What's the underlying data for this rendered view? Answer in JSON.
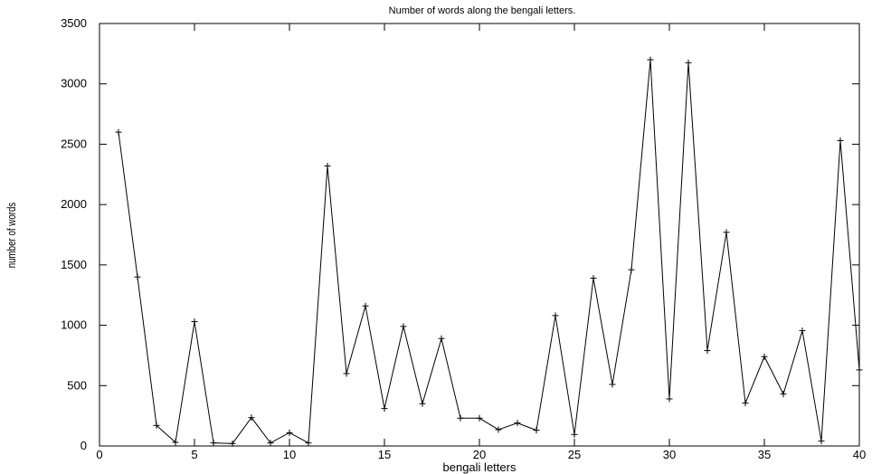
{
  "chart_data": {
    "type": "line",
    "title": "Number of words along the bengali letters.",
    "xlabel": "bengali letters",
    "ylabel": "number of words",
    "xlim": [
      0,
      40
    ],
    "ylim": [
      0,
      3500
    ],
    "x_ticks": [
      0,
      5,
      10,
      15,
      20,
      25,
      30,
      35,
      40
    ],
    "y_ticks": [
      0,
      500,
      1000,
      1500,
      2000,
      2500,
      3000,
      3500
    ],
    "grid": false,
    "legend": "none",
    "colors": {
      "line": "#000000",
      "axes": "#000000",
      "background": "#ffffff"
    },
    "series": [
      {
        "x": [
          1,
          2,
          3,
          4,
          5,
          6,
          7,
          8,
          9,
          10,
          11,
          12,
          13,
          14,
          15,
          16,
          17,
          18,
          19,
          20,
          21,
          22,
          23,
          24,
          25,
          26,
          27,
          28,
          29,
          30,
          31,
          32,
          33,
          34,
          35,
          36,
          37,
          38,
          39,
          40
        ],
        "values": [
          2600,
          1400,
          170,
          30,
          1030,
          25,
          20,
          235,
          25,
          110,
          25,
          2320,
          600,
          1160,
          310,
          990,
          350,
          890,
          230,
          230,
          135,
          190,
          130,
          1080,
          95,
          1390,
          510,
          1460,
          3200,
          390,
          3175,
          790,
          1770,
          355,
          740,
          430,
          955,
          40,
          2530,
          630
        ]
      }
    ]
  }
}
